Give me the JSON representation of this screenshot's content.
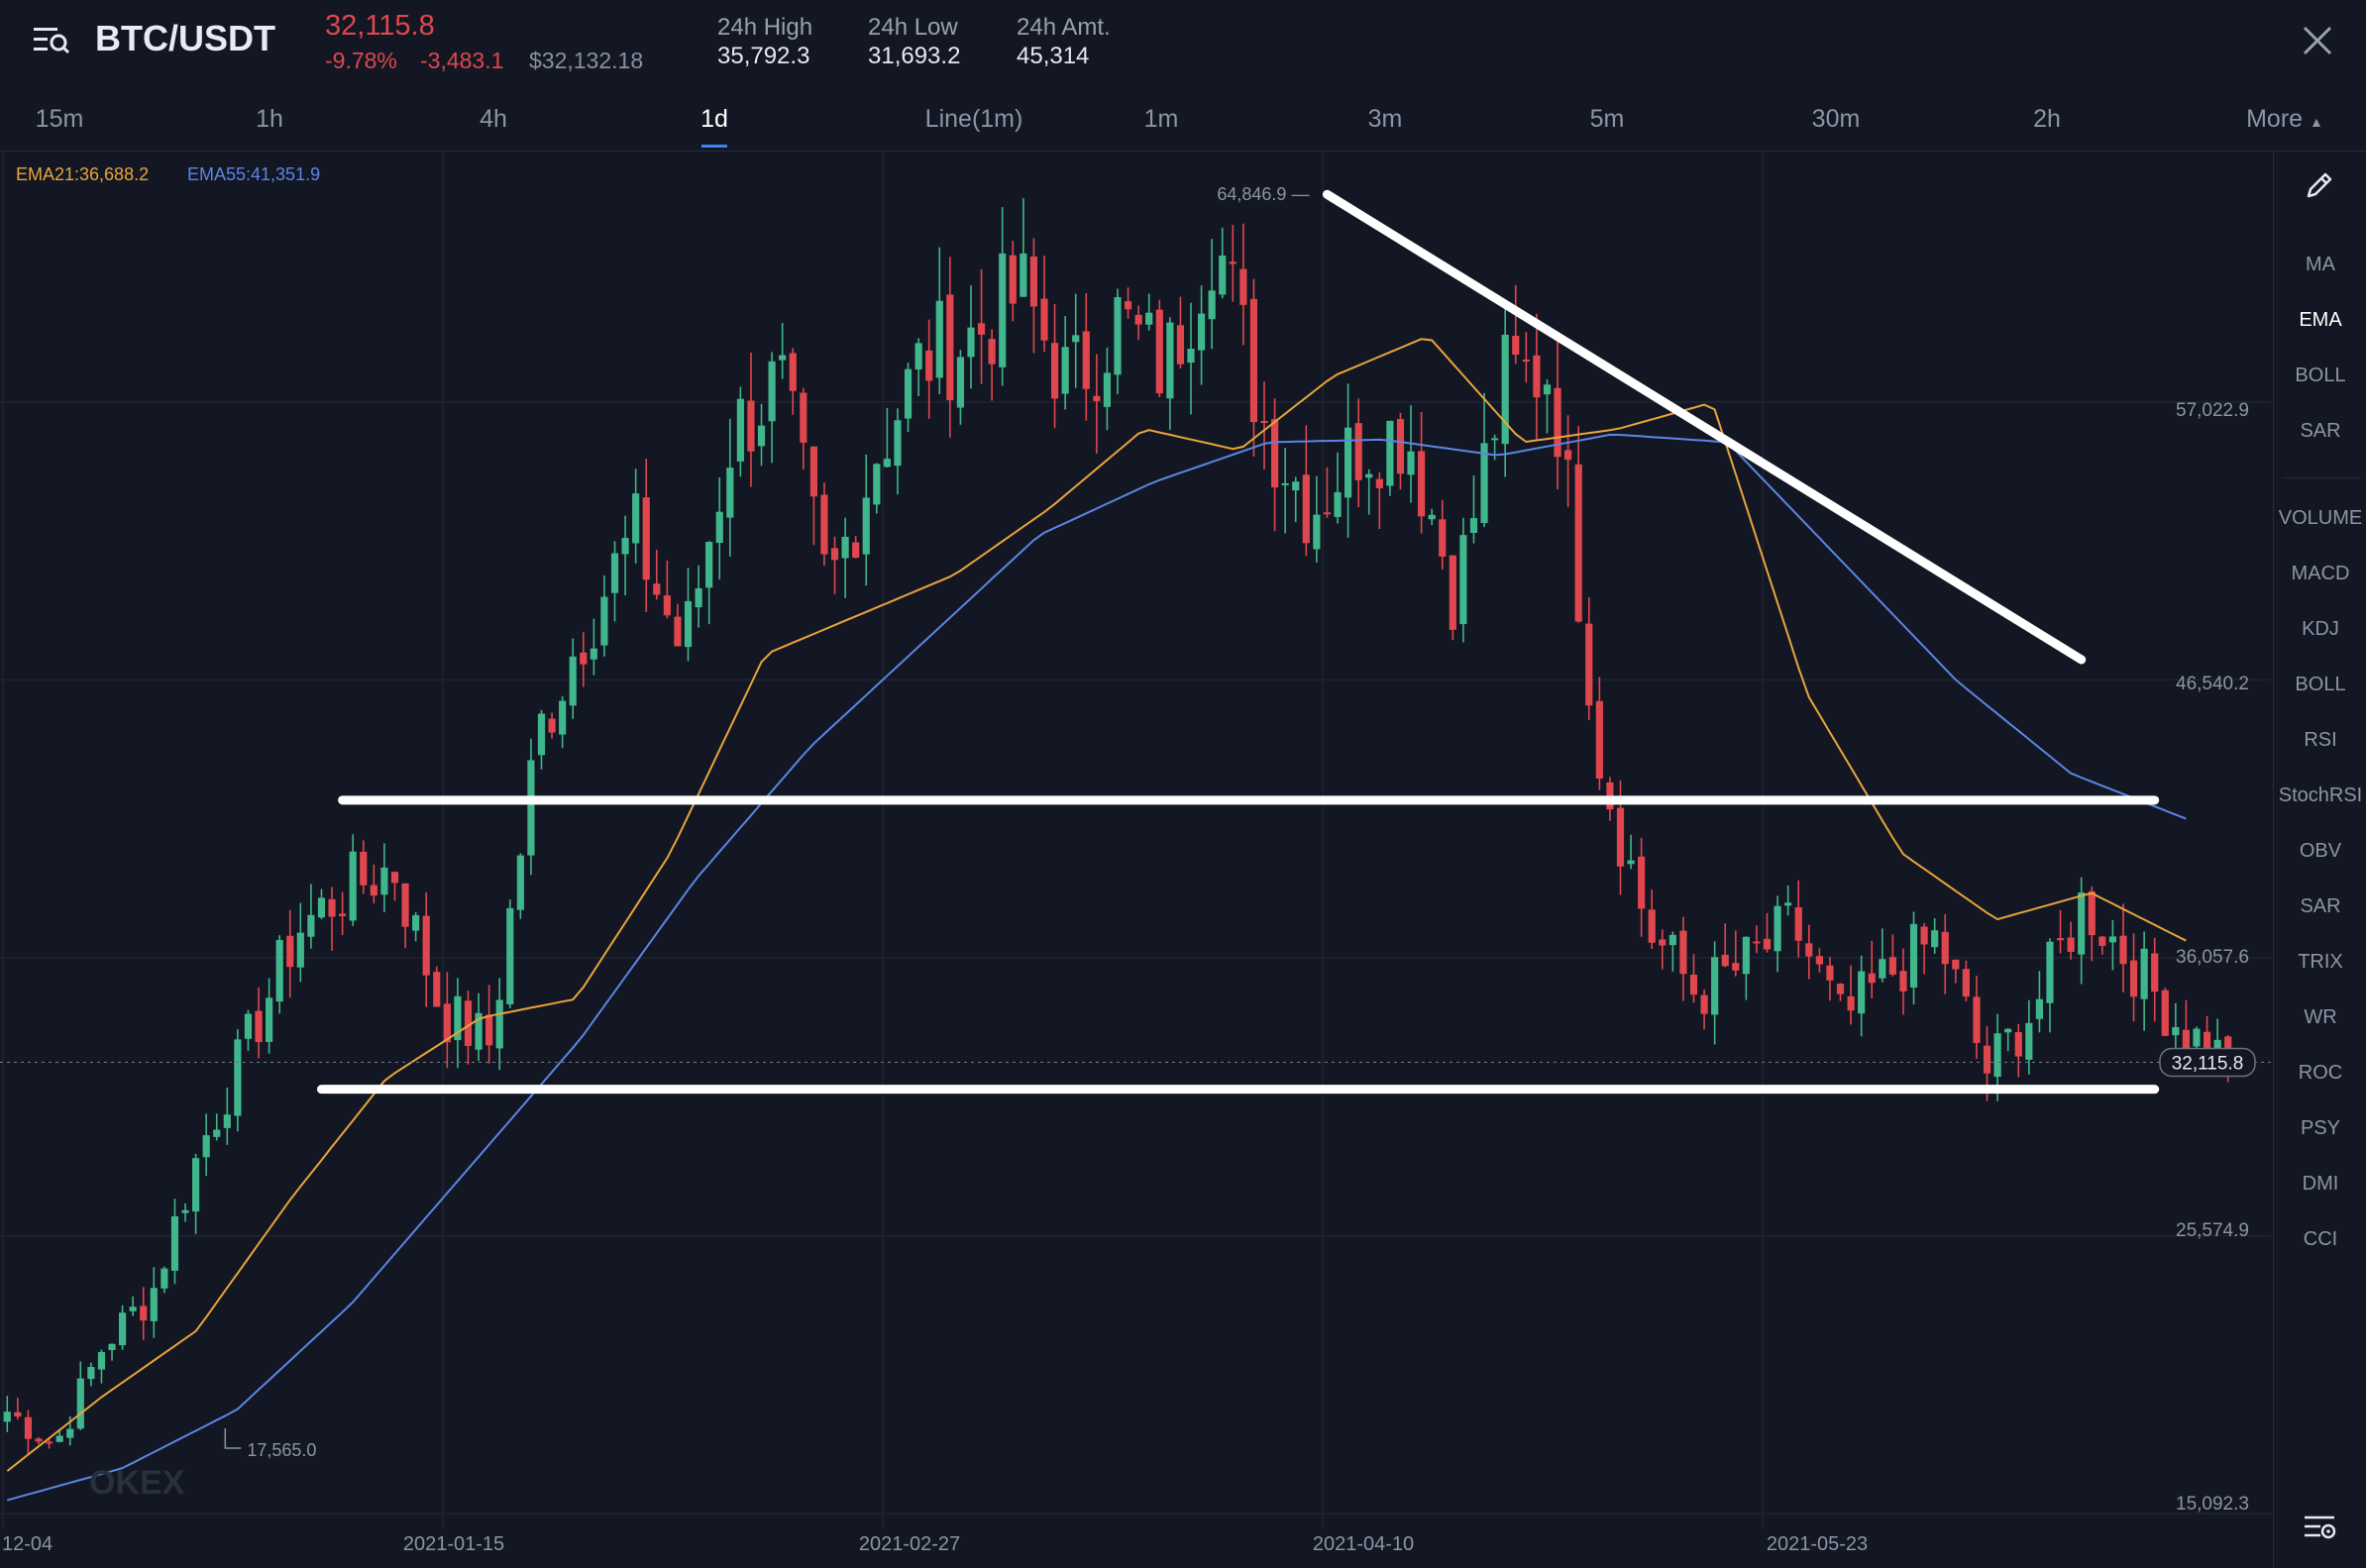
{
  "header": {
    "pair": "BTC/USDT",
    "last_price": "32,115.8",
    "change_pct": "-9.78%",
    "change_abs": "-3,483.1",
    "usd_price": "$32,132.18",
    "high_label": "24h High",
    "high_value": "35,792.3",
    "low_label": "24h Low",
    "low_value": "31,693.2",
    "amt_label": "24h Amt.",
    "amt_value": "45,314"
  },
  "tabs": [
    "15m",
    "1h",
    "4h",
    "1d",
    "Line(1m)",
    "1m",
    "3m",
    "5m",
    "30m",
    "2h",
    "More"
  ],
  "active_tab": "1d",
  "indicators": {
    "ema21": "EMA21:36,688.2",
    "ema55": "EMA55:41,351.9"
  },
  "sidebar": {
    "overlays": [
      "MA",
      "EMA",
      "BOLL",
      "SAR"
    ],
    "oscillators": [
      "VOLUME",
      "MACD",
      "KDJ",
      "BOLL",
      "RSI",
      "StochRSI",
      "OBV",
      "SAR",
      "TRIX",
      "WR",
      "ROC",
      "PSY",
      "DMI",
      "CCI"
    ],
    "active": "EMA"
  },
  "colors": {
    "background": "#131723",
    "up": "#3fb68b",
    "down": "#e0464e",
    "ema21": "#e9a43b",
    "ema55": "#5b86e5",
    "trendline": "#ffffff"
  },
  "chart_data": {
    "type": "candlestick",
    "symbol": "BTC/USDT",
    "interval": "1d",
    "y_ticks": [
      15092.3,
      25574.9,
      36057.6,
      46540.2,
      57022.9
    ],
    "y_tick_labels": [
      "15,092.3",
      "25,574.9",
      "36,057.6",
      "46,540.2",
      "57,022.9"
    ],
    "ylim": [
      14500,
      66500
    ],
    "x_ticks": [
      "12-04",
      "2021-01-15",
      "2021-02-27",
      "2021-04-10",
      "2021-05-23"
    ],
    "max_label": "64,846.9",
    "min_label": "17,565.0",
    "current_price_label": "32,115.8",
    "current_price": 32115.8,
    "watermark": "OKEX",
    "anchors": {
      "day_offsets": [
        0,
        42,
        84,
        126,
        168,
        201
      ],
      "close_prices": [
        18950,
        17700,
        21500,
        23400,
        28900,
        32900,
        37100,
        38600,
        39500,
        34000,
        32800,
        44500,
        48800,
        52000,
        47500,
        55800,
        57800,
        49800,
        55200,
        58700,
        59500,
        61200,
        57600,
        60100,
        58200,
        63600,
        56400,
        53000,
        55500,
        56000,
        49800,
        57800,
        58300,
        43500,
        37100,
        34700,
        35800,
        37300,
        33600,
        35500,
        36800,
        31800,
        34200,
        38200,
        35900,
        33500,
        32115.8
      ]
    },
    "ema21_anchors": [
      16700,
      19500,
      22000,
      27000,
      31500,
      33800,
      34500,
      40000,
      47500,
      49000,
      50500,
      53000,
      56000,
      55200,
      58000,
      59500,
      55500,
      56000,
      57000,
      46000,
      40000,
      37500,
      38500,
      36700
    ],
    "ema55_anchors": [
      15600,
      16800,
      19000,
      23000,
      28000,
      33000,
      39000,
      44000,
      48000,
      52000,
      54000,
      55500,
      55600,
      55000,
      55800,
      55500,
      51000,
      46500,
      43000,
      41300
    ],
    "annotations": [
      {
        "type": "trendline",
        "from": {
          "day": 126,
          "price": 64847
        },
        "to": {
          "day": 198,
          "price": 47300
        }
      },
      {
        "type": "horizontal",
        "price": 42000,
        "from_day": 32,
        "to_day": 205
      },
      {
        "type": "horizontal",
        "price": 31100,
        "from_day": 30,
        "to_day": 205
      }
    ]
  }
}
